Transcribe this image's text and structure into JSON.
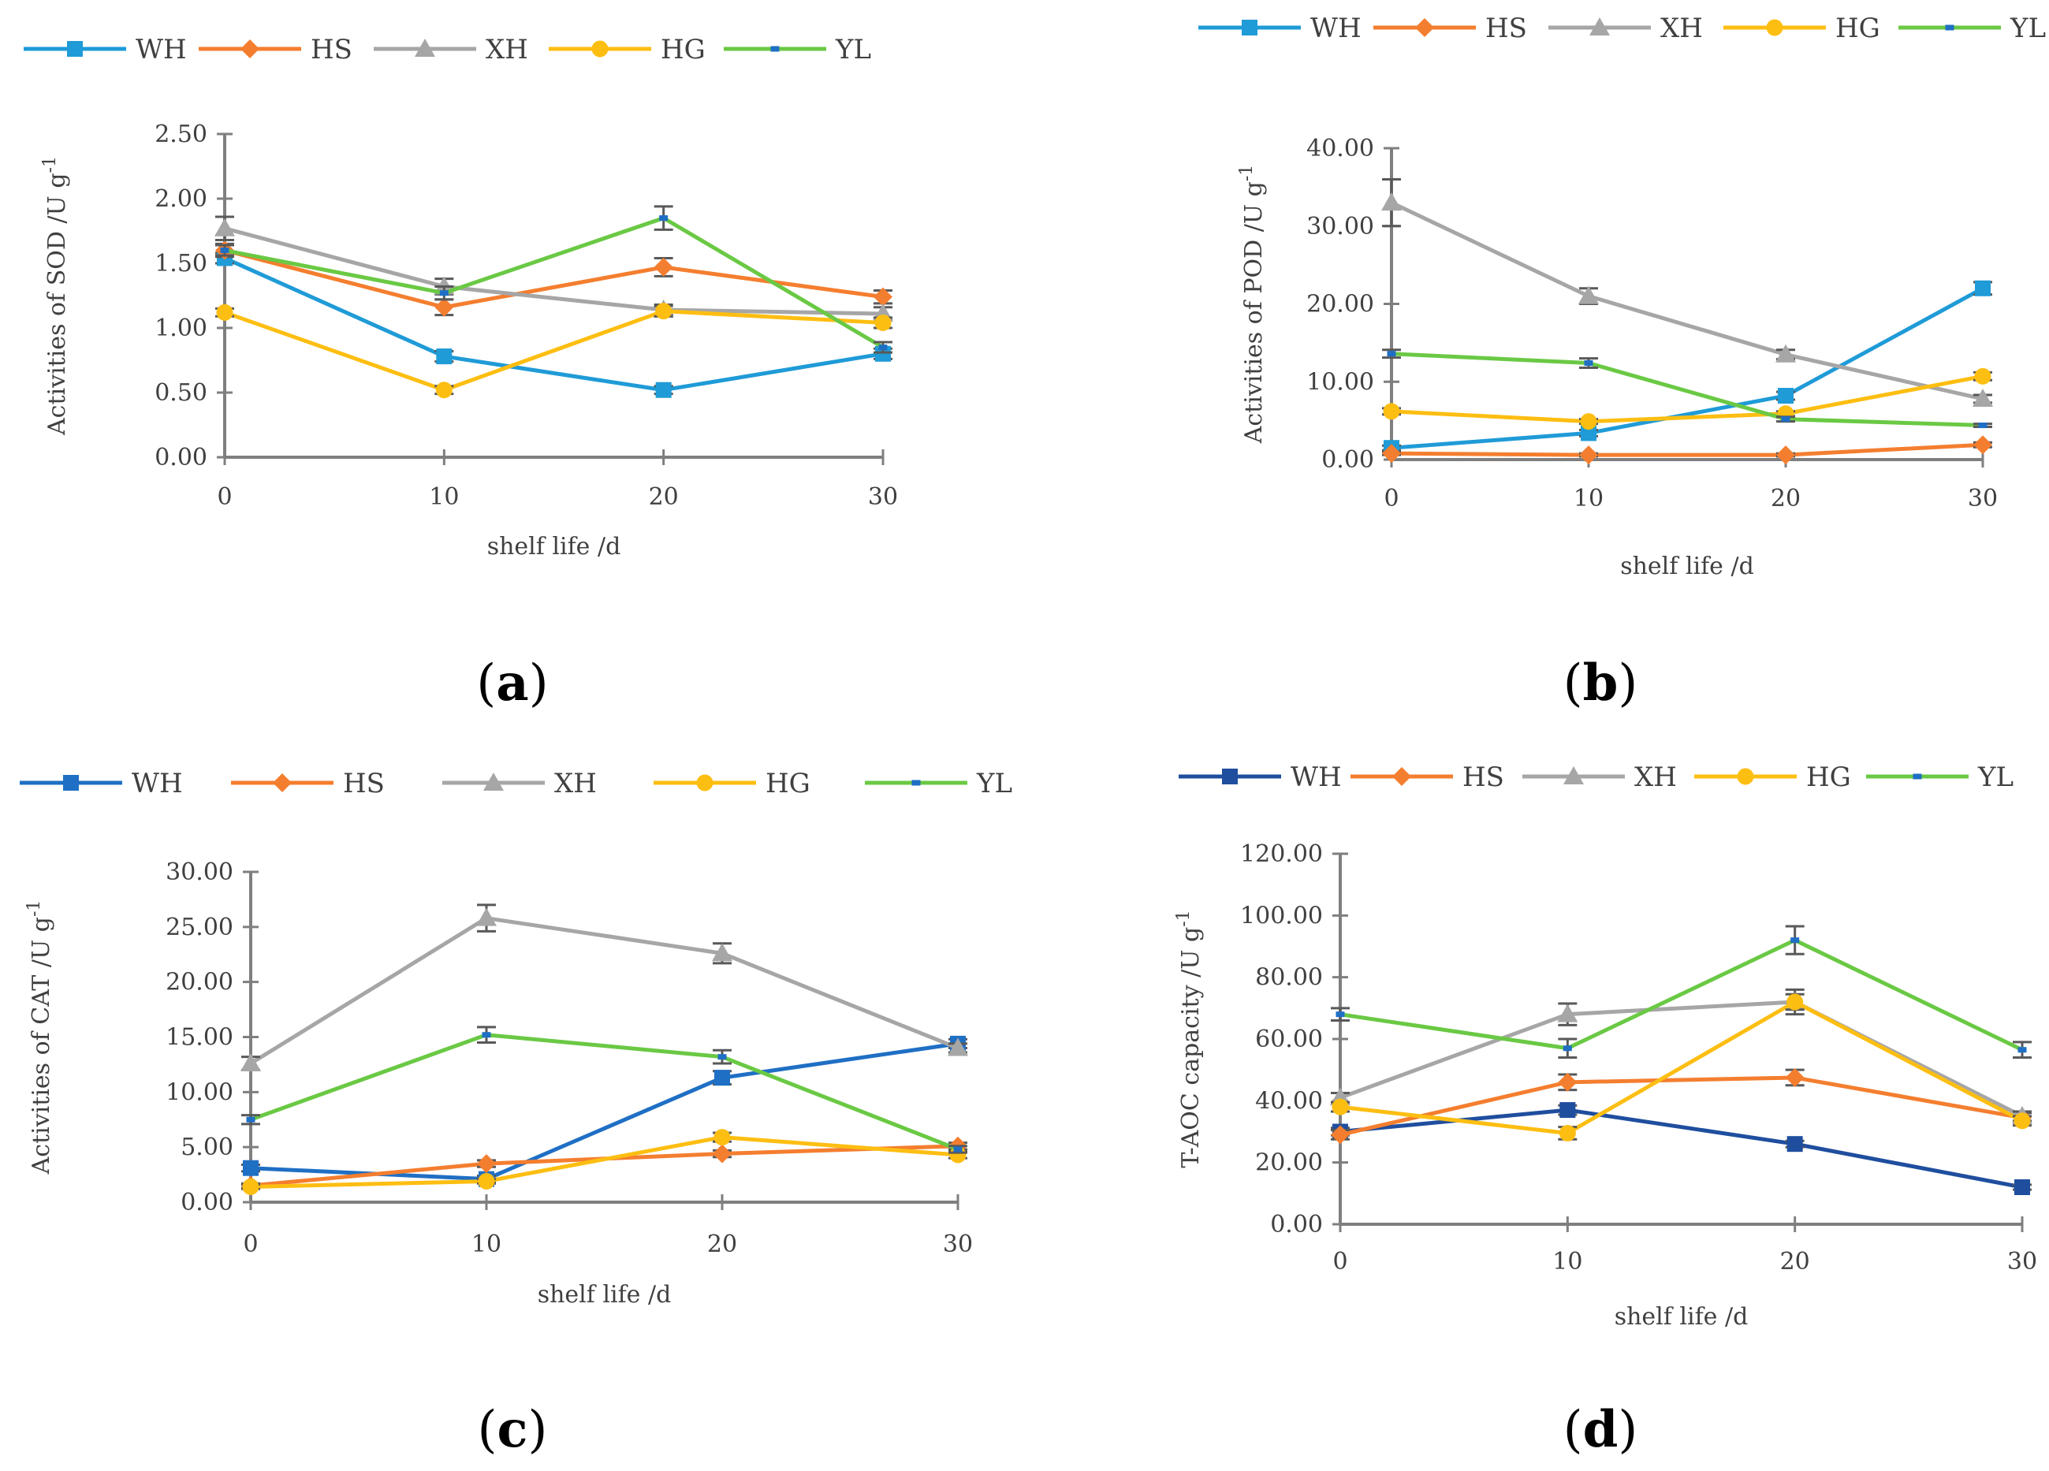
{
  "figure": {
    "panels": [
      "(a)",
      "(b)",
      "(c)",
      "(d)"
    ]
  },
  "chart_data": [
    {
      "id": "a",
      "type": "line",
      "panel_label": "(a)",
      "panel_letter": "a",
      "xlabel": "shelf life /d",
      "ylabel": "Activities of SOD /U g",
      "ylabel_sup": "-1",
      "x": [
        0,
        10,
        20,
        30
      ],
      "xlim": [
        0,
        30
      ],
      "ylim": [
        0,
        2.5
      ],
      "ystep": 0.5,
      "ydecimals": 2,
      "legend_position": "top",
      "series": [
        {
          "name": "WH",
          "color": "#1F9BD7",
          "marker": "square",
          "values": [
            1.54,
            0.78,
            0.52,
            0.8
          ],
          "errors": [
            0.04,
            0.04,
            0.03,
            0.04
          ]
        },
        {
          "name": "HS",
          "color": "#F47E2F",
          "marker": "diamond",
          "values": [
            1.6,
            1.16,
            1.47,
            1.24
          ],
          "errors": [
            0.05,
            0.06,
            0.07,
            0.05
          ]
        },
        {
          "name": "XH",
          "color": "#A6A6A6",
          "marker": "triangle",
          "values": [
            1.77,
            1.32,
            1.14,
            1.11
          ],
          "errors": [
            0.09,
            0.06,
            0.04,
            0.05
          ]
        },
        {
          "name": "HG",
          "color": "#FDBE12",
          "marker": "circle",
          "values": [
            1.12,
            0.52,
            1.13,
            1.04
          ],
          "errors": [
            0.03,
            0.03,
            0.04,
            0.04
          ]
        },
        {
          "name": "YL",
          "color": "#6AC944",
          "marker": "dash",
          "values": [
            1.6,
            1.27,
            1.85,
            0.85
          ],
          "errors": [
            0.04,
            0.05,
            0.09,
            0.04
          ]
        }
      ]
    },
    {
      "id": "b",
      "type": "line",
      "panel_label": "(b)",
      "panel_letter": "b",
      "xlabel": "shelf life /d",
      "ylabel": "Activities of POD /U g",
      "ylabel_sup": "-1",
      "x": [
        0,
        10,
        20,
        30
      ],
      "xlim": [
        0,
        30
      ],
      "ylim": [
        0,
        40
      ],
      "ystep": 10,
      "ydecimals": 2,
      "legend_position": "top",
      "series": [
        {
          "name": "WH",
          "color": "#1F9BD7",
          "marker": "square",
          "values": [
            1.5,
            3.4,
            8.2,
            22.0
          ],
          "errors": [
            0.3,
            0.4,
            0.5,
            0.8
          ]
        },
        {
          "name": "HS",
          "color": "#F47E2F",
          "marker": "diamond",
          "values": [
            0.8,
            0.6,
            0.6,
            1.9
          ],
          "errors": [
            0.2,
            0.2,
            0.2,
            0.3
          ]
        },
        {
          "name": "XH",
          "color": "#A6A6A6",
          "marker": "triangle",
          "values": [
            33.0,
            21.0,
            13.5,
            7.8
          ],
          "errors": [
            3.0,
            1.0,
            0.6,
            0.5
          ]
        },
        {
          "name": "HG",
          "color": "#FDBE12",
          "marker": "circle",
          "values": [
            6.2,
            4.9,
            5.9,
            10.7
          ],
          "errors": [
            0.4,
            0.3,
            0.3,
            0.5
          ]
        },
        {
          "name": "YL",
          "color": "#6AC944",
          "marker": "dash",
          "values": [
            13.6,
            12.4,
            5.2,
            4.4
          ],
          "errors": [
            0.5,
            0.6,
            0.3,
            0.2
          ]
        }
      ]
    },
    {
      "id": "c",
      "type": "line",
      "panel_label": "(c)",
      "panel_letter": "c",
      "xlabel": "shelf life /d",
      "ylabel": "Activities of CAT /U g",
      "ylabel_sup": "-1",
      "x": [
        0,
        10,
        20,
        30
      ],
      "xlim": [
        0,
        30
      ],
      "ylim": [
        0,
        30
      ],
      "ystep": 5,
      "ydecimals": 2,
      "legend_position": "top",
      "series": [
        {
          "name": "WH",
          "color": "#1F6FC4",
          "marker": "square",
          "values": [
            3.1,
            2.1,
            11.3,
            14.4
          ],
          "errors": [
            0.3,
            0.3,
            0.6,
            0.4
          ]
        },
        {
          "name": "HS",
          "color": "#F47E2F",
          "marker": "diamond",
          "values": [
            1.5,
            3.5,
            4.4,
            5.1
          ],
          "errors": [
            0.2,
            0.3,
            0.3,
            0.3
          ]
        },
        {
          "name": "XH",
          "color": "#A6A6A6",
          "marker": "triangle",
          "values": [
            12.6,
            25.8,
            22.6,
            14.0
          ],
          "errors": [
            0.6,
            1.2,
            0.9,
            0.4
          ]
        },
        {
          "name": "HG",
          "color": "#FDBE12",
          "marker": "circle",
          "values": [
            1.4,
            1.9,
            5.9,
            4.3
          ],
          "errors": [
            0.2,
            0.2,
            0.4,
            0.3
          ]
        },
        {
          "name": "YL",
          "color": "#6AC944",
          "marker": "dash",
          "values": [
            7.5,
            15.2,
            13.2,
            4.8
          ],
          "errors": [
            0.4,
            0.7,
            0.6,
            0.3
          ]
        }
      ]
    },
    {
      "id": "d",
      "type": "line",
      "panel_label": "(d)",
      "panel_letter": "d",
      "xlabel": "shelf life /d",
      "ylabel": "T-AOC capacity /U g",
      "ylabel_sup": "-1",
      "x": [
        0,
        10,
        20,
        30
      ],
      "xlim": [
        0,
        30
      ],
      "ylim": [
        0,
        120
      ],
      "ystep": 20,
      "ydecimals": 2,
      "legend_position": "top",
      "series": [
        {
          "name": "WH",
          "color": "#1F4E9E",
          "marker": "square",
          "values": [
            30.0,
            37.0,
            26.0,
            12.0
          ],
          "errors": [
            1.2,
            1.5,
            1.0,
            0.8
          ]
        },
        {
          "name": "HS",
          "color": "#F47E2F",
          "marker": "diamond",
          "values": [
            29.0,
            46.0,
            47.5,
            34.5
          ],
          "errors": [
            1.5,
            2.5,
            2.5,
            1.5
          ]
        },
        {
          "name": "XH",
          "color": "#A6A6A6",
          "marker": "triangle",
          "values": [
            41.0,
            68.0,
            72.0,
            35.0
          ],
          "errors": [
            1.5,
            3.5,
            4.0,
            1.5
          ]
        },
        {
          "name": "HG",
          "color": "#FDBE12",
          "marker": "circle",
          "values": [
            38.0,
            29.5,
            72.0,
            33.5
          ],
          "errors": [
            1.5,
            2.0,
            2.5,
            1.5
          ]
        },
        {
          "name": "YL",
          "color": "#6AC944",
          "marker": "dash",
          "values": [
            68.0,
            57.0,
            92.0,
            56.5
          ],
          "errors": [
            2.0,
            3.0,
            4.5,
            2.5
          ]
        }
      ]
    }
  ]
}
